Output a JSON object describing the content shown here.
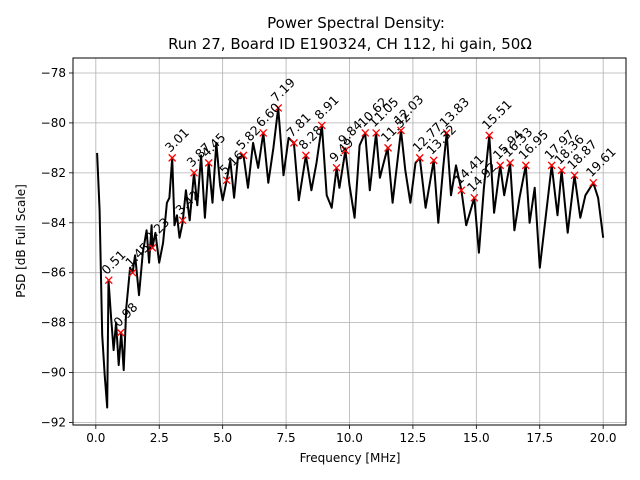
{
  "chart_data": {
    "type": "line",
    "title_line1": "Power Spectral Density:",
    "title_line2": "Run 27, Board ID E190324, CH 112, hi gain, 50Ω",
    "xlabel": "Frequency [MHz]",
    "ylabel": "PSD [dB Full Scale]",
    "xlim": [
      -0.9,
      20.9
    ],
    "ylim": [
      -92.1,
      -77.4
    ],
    "xticks": [
      0.0,
      2.5,
      5.0,
      7.5,
      10.0,
      12.5,
      15.0,
      17.5,
      20.0
    ],
    "xtick_labels": [
      "0.0",
      "2.5",
      "5.0",
      "7.5",
      "10.0",
      "12.5",
      "15.0",
      "17.5",
      "20.0"
    ],
    "yticks": [
      -78,
      -80,
      -82,
      -84,
      -86,
      -88,
      -90,
      -92
    ],
    "ytick_labels": [
      "−78",
      "−80",
      "−82",
      "−84",
      "−86",
      "−88",
      "−90",
      "−92"
    ],
    "grid": true,
    "line_color": "#000000",
    "marker_color": "#ff0000",
    "series": [
      {
        "x": [
          0.05,
          0.15,
          0.25,
          0.35,
          0.45,
          0.5,
          0.6,
          0.7,
          0.8,
          0.9,
          1.0,
          1.1,
          1.2,
          1.35,
          1.45,
          1.55,
          1.7,
          1.85,
          2.0,
          2.1,
          2.2,
          2.23,
          2.35,
          2.5,
          2.65,
          2.8,
          2.9,
          3.01,
          3.1,
          3.2,
          3.3,
          3.42,
          3.55,
          3.7,
          3.87,
          4.0,
          4.15,
          4.3,
          4.45,
          4.6,
          4.75,
          4.9,
          5.0,
          5.16,
          5.3,
          5.45,
          5.6,
          5.82,
          6.0,
          6.2,
          6.4,
          6.6,
          6.8,
          7.0,
          7.19,
          7.4,
          7.6,
          7.81,
          8.0,
          8.28,
          8.5,
          8.7,
          8.91,
          9.1,
          9.3,
          9.49,
          9.6,
          9.84,
          10.0,
          10.2,
          10.4,
          10.62,
          10.8,
          11.05,
          11.2,
          11.32,
          11.5,
          11.7,
          12.03,
          12.2,
          12.4,
          12.6,
          12.77,
          13.0,
          13.32,
          13.5,
          13.7,
          13.83,
          14.0,
          14.2,
          14.41,
          14.6,
          14.92,
          15.1,
          15.3,
          15.51,
          15.7,
          15.94,
          16.1,
          16.33,
          16.5,
          16.7,
          16.95,
          17.1,
          17.3,
          17.5,
          17.97,
          18.2,
          18.36,
          18.6,
          18.87,
          19.1,
          19.3,
          19.61,
          19.8,
          20.0
        ],
        "y": [
          -81.2,
          -83.5,
          -88.5,
          -90.1,
          -91.4,
          -86.3,
          -87.8,
          -89.1,
          -88.0,
          -89.7,
          -88.4,
          -89.9,
          -87.4,
          -85.8,
          -86.0,
          -85.3,
          -86.9,
          -85.2,
          -84.3,
          -85.6,
          -84.1,
          -85.0,
          -84.4,
          -85.6,
          -84.8,
          -83.2,
          -83.0,
          -81.4,
          -84.1,
          -83.7,
          -84.6,
          -84.0,
          -82.7,
          -83.9,
          -82.0,
          -83.3,
          -81.3,
          -83.8,
          -81.6,
          -83.2,
          -80.8,
          -82.5,
          -83.1,
          -82.3,
          -81.5,
          -83.0,
          -81.4,
          -81.3,
          -82.6,
          -80.8,
          -81.8,
          -80.4,
          -82.4,
          -81.0,
          -79.4,
          -82.1,
          -80.6,
          -80.8,
          -83.1,
          -81.3,
          -82.7,
          -81.6,
          -80.1,
          -82.9,
          -83.4,
          -81.8,
          -82.6,
          -81.1,
          -82.5,
          -83.8,
          -80.9,
          -80.4,
          -82.7,
          -80.4,
          -82.2,
          -81.7,
          -81.0,
          -83.2,
          -80.3,
          -81.9,
          -83.2,
          -81.6,
          -81.4,
          -83.4,
          -81.5,
          -84.0,
          -81.7,
          -80.4,
          -82.9,
          -81.7,
          -82.7,
          -84.1,
          -83.0,
          -85.2,
          -82.6,
          -80.5,
          -83.6,
          -81.7,
          -82.9,
          -81.6,
          -84.3,
          -83.0,
          -81.7,
          -84.0,
          -82.6,
          -85.8,
          -81.7,
          -83.7,
          -81.9,
          -84.4,
          -82.1,
          -83.8,
          -82.9,
          -82.4,
          -83.0,
          -84.6
        ]
      }
    ],
    "annotations": [
      {
        "x": 0.51,
        "y": -86.3,
        "label": "0.51"
      },
      {
        "x": 0.98,
        "y": -88.4,
        "label": "0.98"
      },
      {
        "x": 1.45,
        "y": -86.0,
        "label": "1.45"
      },
      {
        "x": 2.23,
        "y": -85.0,
        "label": "2.23"
      },
      {
        "x": 3.01,
        "y": -81.4,
        "label": "3.01"
      },
      {
        "x": 3.42,
        "y": -83.9,
        "label": "3.42"
      },
      {
        "x": 3.87,
        "y": -82.0,
        "label": "3.87"
      },
      {
        "x": 4.45,
        "y": -81.6,
        "label": "4.45"
      },
      {
        "x": 5.16,
        "y": -82.3,
        "label": "5.16"
      },
      {
        "x": 5.82,
        "y": -81.3,
        "label": "5.82"
      },
      {
        "x": 6.6,
        "y": -80.4,
        "label": "6.60"
      },
      {
        "x": 7.19,
        "y": -79.4,
        "label": "7.19"
      },
      {
        "x": 7.81,
        "y": -80.8,
        "label": "7.81"
      },
      {
        "x": 8.28,
        "y": -81.3,
        "label": "8.28"
      },
      {
        "x": 8.91,
        "y": -80.1,
        "label": "8.91"
      },
      {
        "x": 9.49,
        "y": -81.8,
        "label": "9.49"
      },
      {
        "x": 9.84,
        "y": -81.1,
        "label": "9.84"
      },
      {
        "x": 10.62,
        "y": -80.4,
        "label": "10.62"
      },
      {
        "x": 11.05,
        "y": -80.4,
        "label": "11.05"
      },
      {
        "x": 11.52,
        "y": -81.0,
        "label": "11.52"
      },
      {
        "x": 12.03,
        "y": -80.3,
        "label": "12.03"
      },
      {
        "x": 12.77,
        "y": -81.4,
        "label": "12.77"
      },
      {
        "x": 13.32,
        "y": -81.5,
        "label": "13.32"
      },
      {
        "x": 13.83,
        "y": -80.4,
        "label": "13.83"
      },
      {
        "x": 14.41,
        "y": -82.7,
        "label": "14.41"
      },
      {
        "x": 14.92,
        "y": -83.0,
        "label": "14.92"
      },
      {
        "x": 15.51,
        "y": -80.5,
        "label": "15.51"
      },
      {
        "x": 15.94,
        "y": -81.7,
        "label": "15.94"
      },
      {
        "x": 16.33,
        "y": -81.6,
        "label": "16.33"
      },
      {
        "x": 16.95,
        "y": -81.7,
        "label": "16.95"
      },
      {
        "x": 17.97,
        "y": -81.7,
        "label": "17.97"
      },
      {
        "x": 18.36,
        "y": -81.9,
        "label": "18.36"
      },
      {
        "x": 18.87,
        "y": -82.1,
        "label": "18.87"
      },
      {
        "x": 19.61,
        "y": -82.4,
        "label": "19.61"
      }
    ]
  }
}
